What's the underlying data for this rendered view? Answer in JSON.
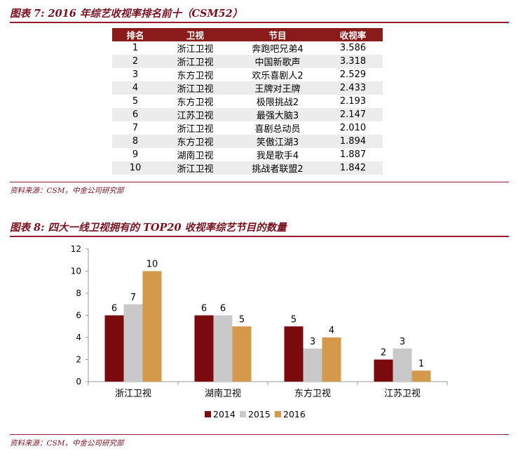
{
  "table_title": "图表 7: 2016 年综艺收视率排名前十（CSM52）",
  "table": {
    "headers": [
      "排名",
      "卫视",
      "节目",
      "收视率"
    ],
    "rows": [
      [
        "1",
        "浙江卫视",
        "奔跑吧兄弟4",
        "3.586"
      ],
      [
        "2",
        "浙江卫视",
        "中国新歌声",
        "3.318"
      ],
      [
        "3",
        "东方卫视",
        "欢乐喜剧人2",
        "2.529"
      ],
      [
        "4",
        "浙江卫视",
        "王牌对王牌",
        "2.433"
      ],
      [
        "5",
        "东方卫视",
        "极限挑战2",
        "2.193"
      ],
      [
        "6",
        "江苏卫视",
        "最强大脑3",
        "2.147"
      ],
      [
        "7",
        "浙江卫视",
        "喜剧总动员",
        "2.010"
      ],
      [
        "8",
        "东方卫视",
        "笑傲江湖3",
        "1.894"
      ],
      [
        "9",
        "湖南卫视",
        "我是歌手4",
        "1.887"
      ],
      [
        "10",
        "浙江卫视",
        "挑战者联盟2",
        "1.842"
      ]
    ]
  },
  "source1": "资料来源：CSM，中金公司研究部",
  "chart_title": "图表 8: 四大一线卫视拥有的 TOP20 收视率综艺节目的数量",
  "source2": "资料来源：CSM，中金公司研究部",
  "chart_data": {
    "type": "bar",
    "title": "",
    "xlabel": "",
    "ylabel": "",
    "categories": [
      "浙江卫视",
      "湖南卫视",
      "东方卫视",
      "江苏卫视"
    ],
    "series": [
      {
        "name": "2014",
        "values": [
          6,
          6,
          5,
          2
        ],
        "color": "#7b0a0f"
      },
      {
        "name": "2015",
        "values": [
          7,
          6,
          3,
          3
        ],
        "color": "#c9c9c9"
      },
      {
        "name": "2016",
        "values": [
          10,
          5,
          4,
          1
        ],
        "color": "#d4994a"
      }
    ],
    "ylim": [
      0,
      12
    ],
    "yticks": [
      0,
      2,
      4,
      6,
      8,
      10,
      12
    ],
    "grid": false,
    "legend": "bottom"
  }
}
